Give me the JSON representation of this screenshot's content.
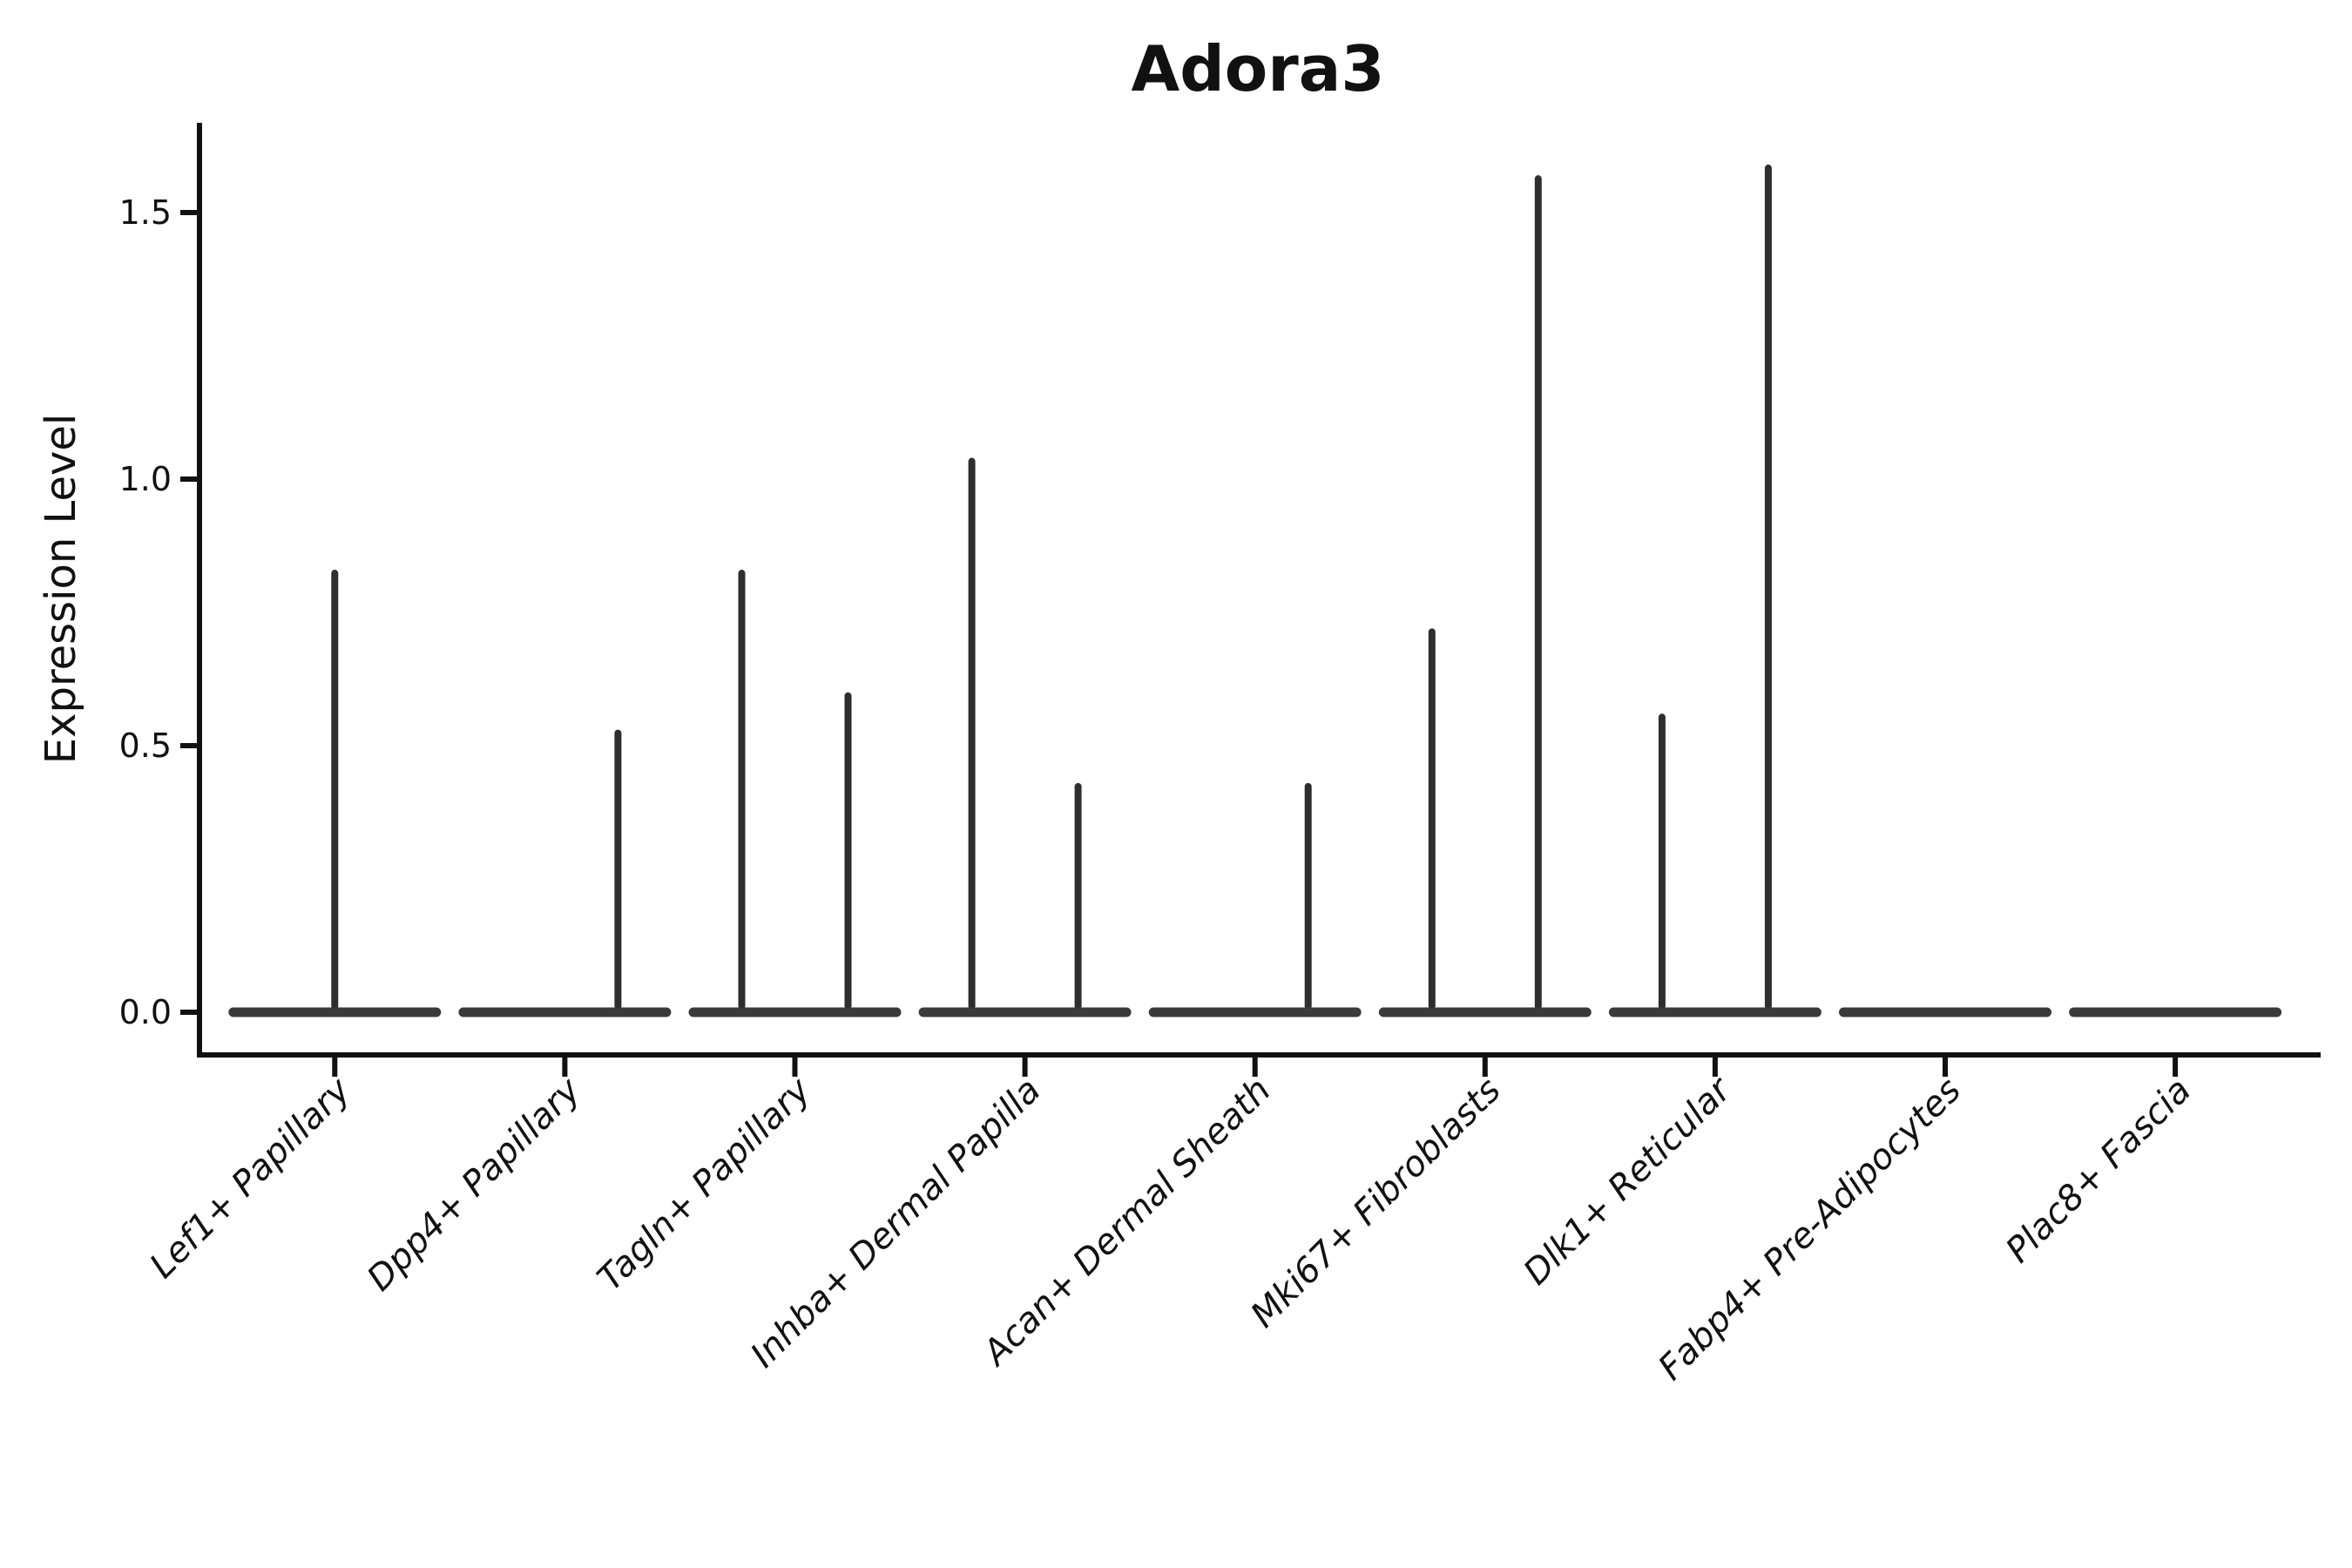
{
  "figure": {
    "background": "#ffffff"
  },
  "chart_data": {
    "type": "violin",
    "title": "Adora3",
    "xlabel": "",
    "ylabel": "Expression Level",
    "grid": false,
    "legend": false,
    "ylim": [
      -0.08,
      1.67
    ],
    "ytick_labels": [
      "0.0",
      "0.5",
      "1.0",
      "1.5"
    ],
    "ytick_values": [
      0.0,
      0.5,
      1.0,
      1.5
    ],
    "categories": [
      "Lef1+ Papillary",
      "Dpp4+ Papillary",
      "Tagln+ Papillary",
      "Inhba+ Dermal Papilla",
      "Acan+ Dermal Sheath",
      "Mki67+ Fibroblasts",
      "Dlk1+ Reticular",
      "Fabp4+ Pre-Adipocytes",
      "Plac8+ Fascia"
    ],
    "violins": [
      {
        "category": "Lef1+ Papillary",
        "baseline_at_zero": true,
        "spikes": [
          {
            "side": "center",
            "max": 0.83
          }
        ]
      },
      {
        "category": "Dpp4+ Papillary",
        "baseline_at_zero": true,
        "spikes": [
          {
            "side": "right",
            "max": 0.53
          }
        ]
      },
      {
        "category": "Tagln+ Papillary",
        "baseline_at_zero": true,
        "spikes": [
          {
            "side": "left",
            "max": 0.83
          },
          {
            "side": "right",
            "max": 0.6
          }
        ]
      },
      {
        "category": "Inhba+ Dermal Papilla",
        "baseline_at_zero": true,
        "spikes": [
          {
            "side": "left",
            "max": 1.04
          },
          {
            "side": "right",
            "max": 0.43
          }
        ]
      },
      {
        "category": "Acan+ Dermal Sheath",
        "baseline_at_zero": true,
        "spikes": [
          {
            "side": "right",
            "max": 0.43
          }
        ]
      },
      {
        "category": "Mki67+ Fibroblasts",
        "baseline_at_zero": true,
        "spikes": [
          {
            "side": "left",
            "max": 0.72
          },
          {
            "side": "right",
            "max": 1.57
          }
        ]
      },
      {
        "category": "Dlk1+ Reticular",
        "baseline_at_zero": true,
        "spikes": [
          {
            "side": "left",
            "max": 0.56
          },
          {
            "side": "right",
            "max": 1.59
          }
        ]
      },
      {
        "category": "Fabp4+ Pre-Adipocytes",
        "baseline_at_zero": true,
        "spikes": []
      },
      {
        "category": "Plac8+ Fascia",
        "baseline_at_zero": true,
        "spikes": []
      }
    ],
    "colors": {
      "violin_body": "#3a3a3a",
      "spike": "#2e2e2e",
      "axis": "#111111",
      "text": "#111111",
      "title": "#000000"
    }
  }
}
